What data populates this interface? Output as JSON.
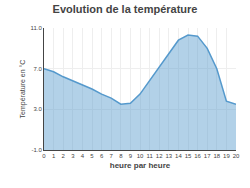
{
  "chart_data": {
    "type": "area",
    "title": "Evolution de la température",
    "xlabel": "heure par heure",
    "ylabel": "Température en °C",
    "x": [
      0,
      1,
      2,
      3,
      4,
      5,
      6,
      7,
      8,
      9,
      10,
      11,
      12,
      13,
      14,
      15,
      16,
      17,
      18,
      19,
      20
    ],
    "values": [
      7.0,
      6.7,
      6.2,
      5.8,
      5.4,
      5.0,
      4.5,
      4.1,
      3.5,
      3.6,
      4.5,
      5.8,
      7.2,
      8.5,
      9.8,
      10.3,
      10.2,
      9.0,
      7.0,
      3.8,
      3.5
    ],
    "color": "#5599cc",
    "xlim": [
      0,
      20
    ],
    "xticks": [
      0,
      1,
      2,
      3,
      4,
      5,
      6,
      7,
      8,
      9,
      10,
      11,
      12,
      13,
      14,
      15,
      16,
      17,
      18,
      19,
      20
    ],
    "ylim": [
      -1.0,
      11.0
    ],
    "yticks": [
      {
        "value": -1.0,
        "label": "-1.0"
      },
      {
        "value": 3.0,
        "label": "3.0"
      },
      {
        "value": 7.0,
        "label": "7.0"
      },
      {
        "value": 11.0,
        "label": "11.0"
      }
    ],
    "grid": true
  }
}
